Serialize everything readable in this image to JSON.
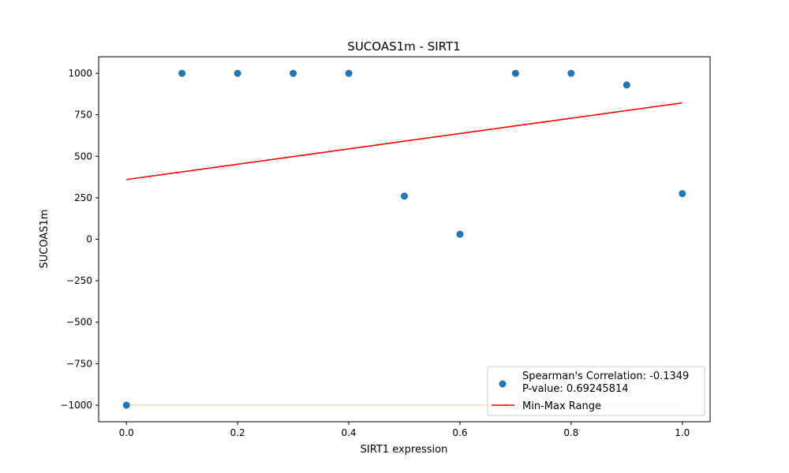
{
  "chart_data": {
    "type": "scatter",
    "title": "SUCOAS1m - SIRT1",
    "xlabel": "SIRT1 expression",
    "ylabel": "SUCOAS1m",
    "xlim": [
      -0.05,
      1.05
    ],
    "ylim": [
      -1100,
      1100
    ],
    "x_ticks": [
      0.0,
      0.2,
      0.4,
      0.6,
      0.8,
      1.0
    ],
    "x_tick_labels": [
      "0.0",
      "0.2",
      "0.4",
      "0.6",
      "0.8",
      "1.0"
    ],
    "y_ticks": [
      1000,
      750,
      500,
      250,
      0,
      -250,
      -500,
      -750,
      -1000
    ],
    "y_tick_labels": [
      "1000",
      "750",
      "500",
      "250",
      "0",
      "−250",
      "−500",
      "−750",
      "−1000"
    ],
    "grid": false,
    "legend_position": "bottom-right",
    "series": [
      {
        "kind": "scatter",
        "color": "#1f77b4",
        "x": [
          0.0,
          0.1,
          0.2,
          0.3,
          0.4,
          0.5,
          0.6,
          0.7,
          0.8,
          0.9,
          1.0
        ],
        "y": [
          -1000,
          1000,
          1000,
          1000,
          1000,
          260,
          30,
          1000,
          1000,
          930,
          275
        ]
      },
      {
        "kind": "line",
        "color": "#ff0000",
        "x": [
          0.0,
          1.0
        ],
        "y": [
          360,
          822
        ]
      },
      {
        "kind": "line",
        "color": "#ffdead",
        "x": [
          0.0,
          1.0
        ],
        "y": [
          -1000,
          -1000
        ]
      }
    ],
    "legend": [
      {
        "marker": "circle",
        "color": "#1f77b4",
        "lines": [
          "Spearman's Correlation: -0.1349",
          "P-value: 0.69245814"
        ]
      },
      {
        "marker": "line",
        "color": "#ff0000",
        "lines": [
          "Min-Max Range"
        ]
      }
    ]
  }
}
